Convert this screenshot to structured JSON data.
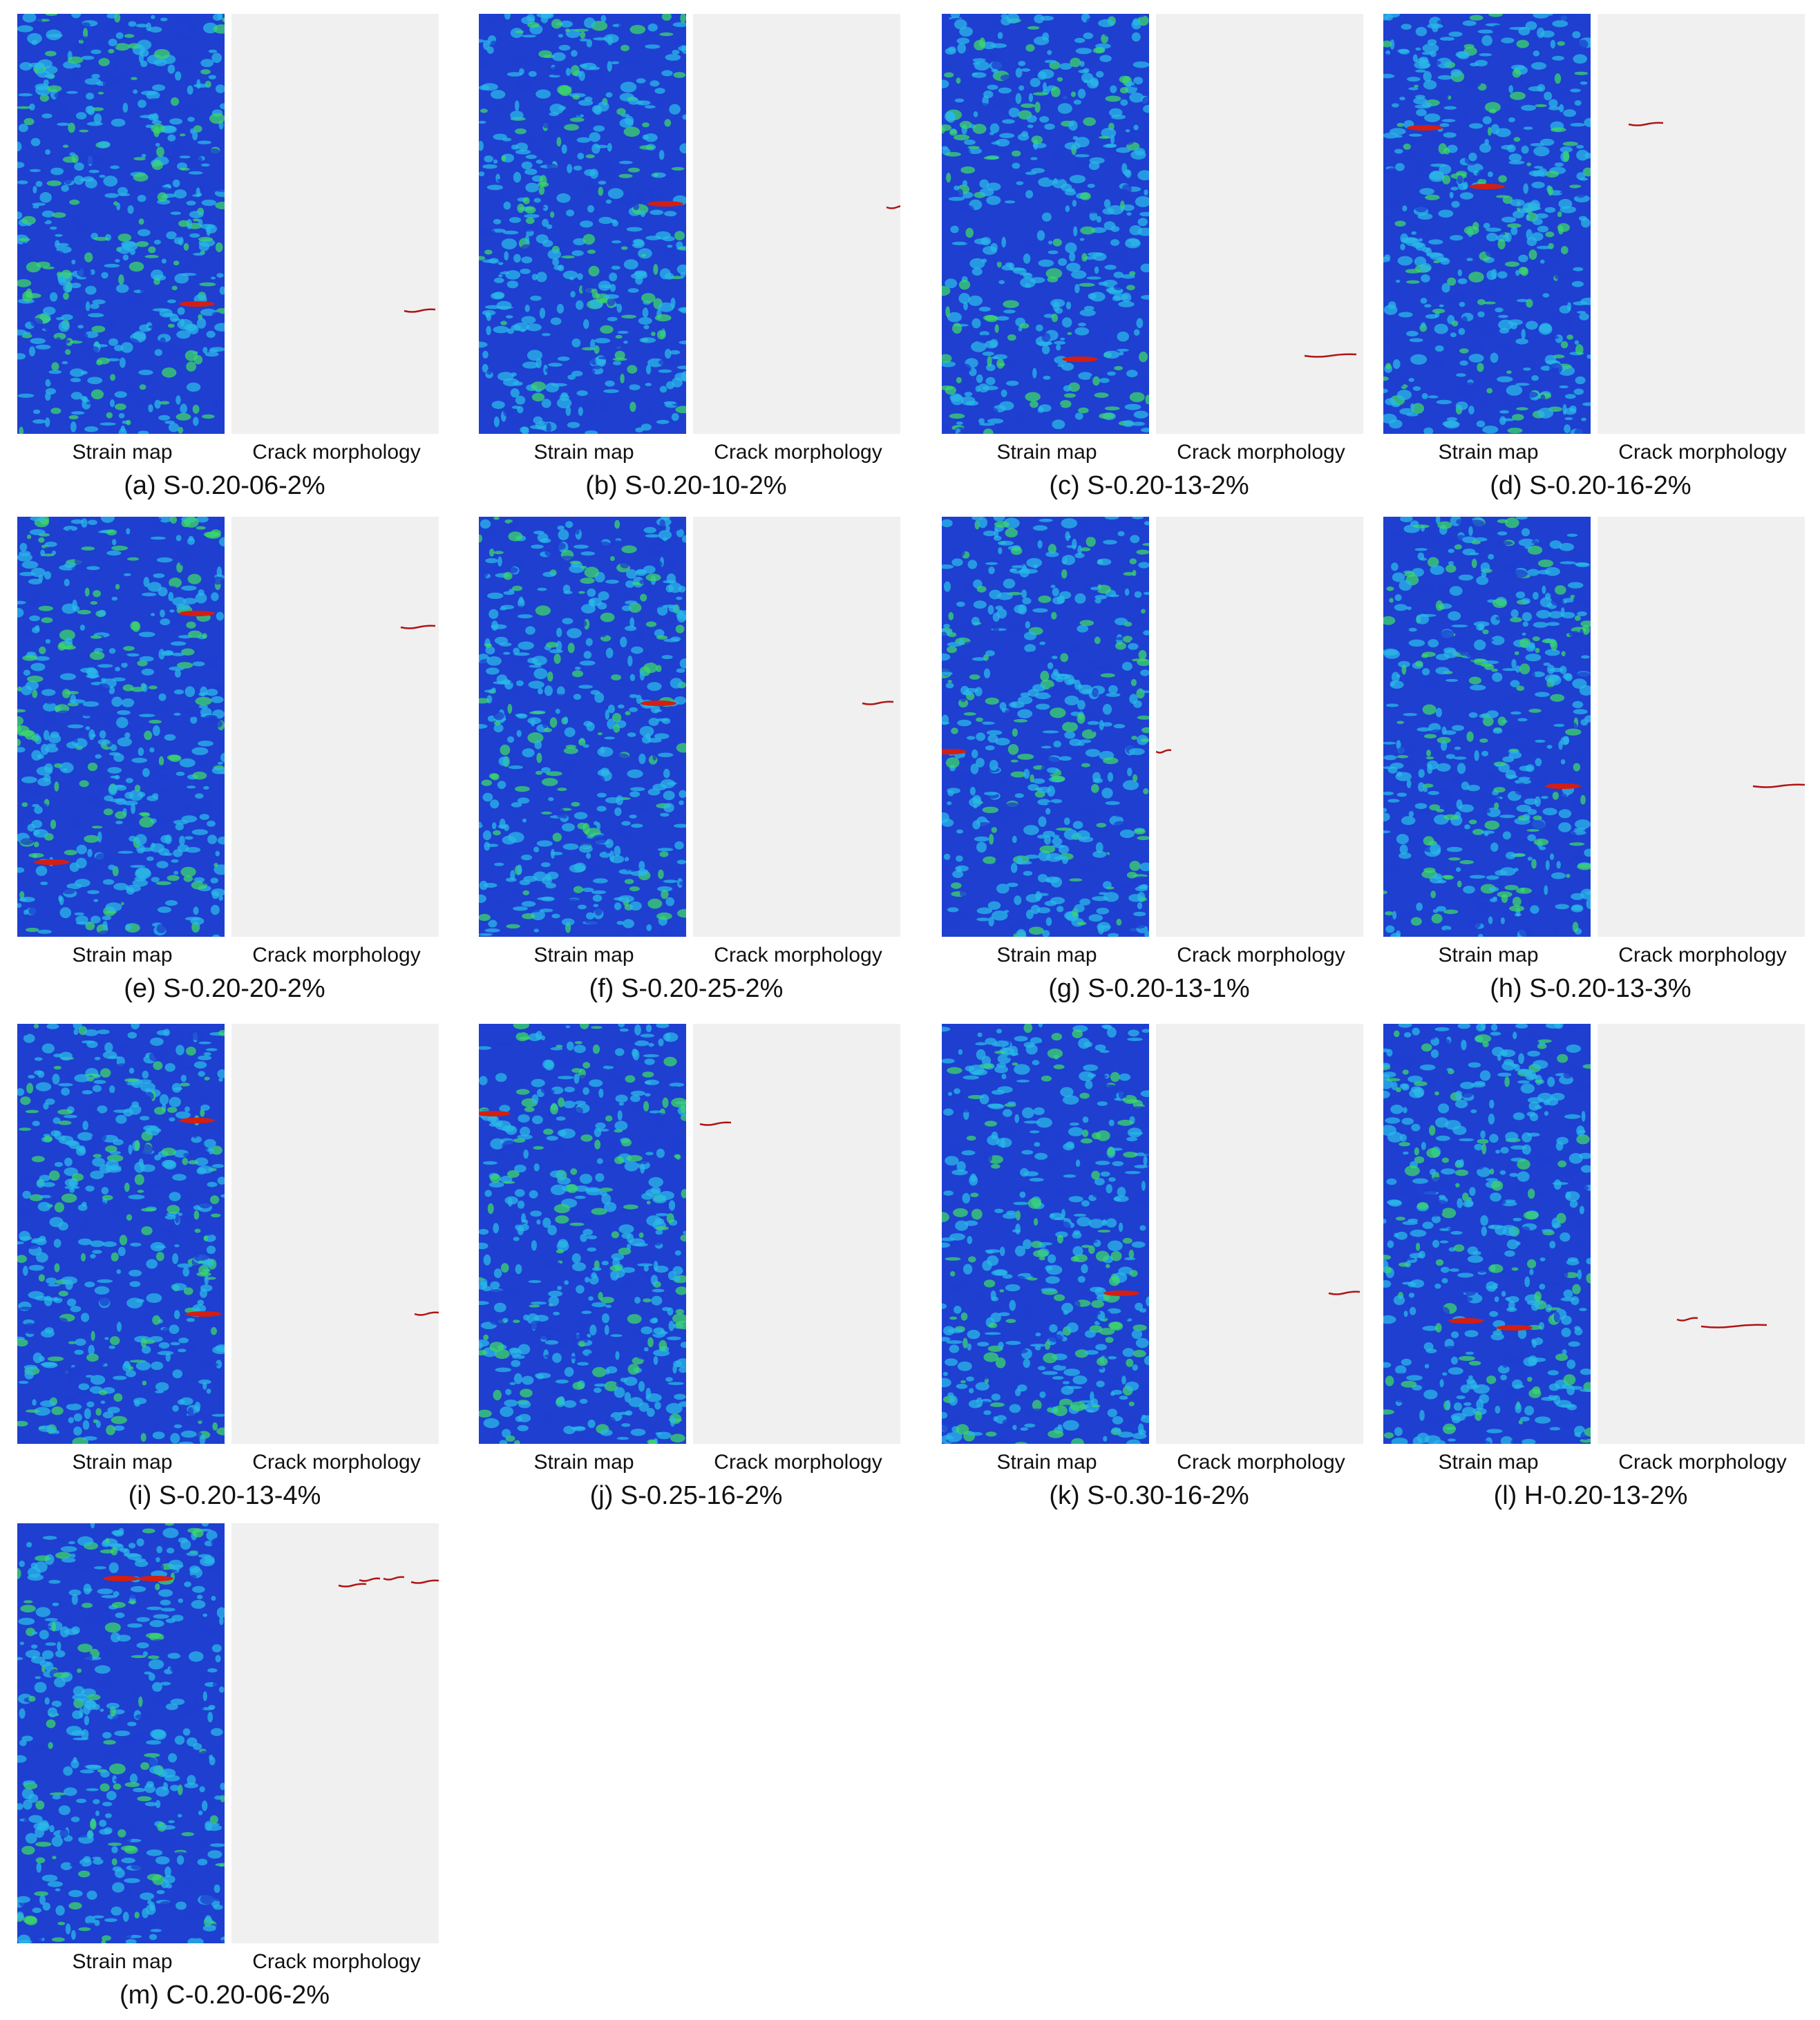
{
  "sublabels": {
    "strain": "Strain map",
    "crack": "Crack morphology"
  },
  "panels": [
    {
      "caption": "(a) S-0.20-06-2%"
    },
    {
      "caption": "(b) S-0.20-10-2%"
    },
    {
      "caption": "(c) S-0.20-13-2%"
    },
    {
      "caption": "(d) S-0.20-16-2%"
    },
    {
      "caption": "(e) S-0.20-20-2%"
    },
    {
      "caption": "(f) S-0.20-25-2%"
    },
    {
      "caption": "(g) S-0.20-13-1%"
    },
    {
      "caption": "(h) S-0.20-13-3%"
    },
    {
      "caption": "(i) S-0.20-13-4%"
    },
    {
      "caption": "(j) S-0.25-16-2%"
    },
    {
      "caption": "(k) S-0.30-16-2%"
    },
    {
      "caption": "(l) H-0.20-13-2%"
    },
    {
      "caption": "(m) C-0.20-06-2%"
    }
  ],
  "colors": {
    "strain_low": "#1e3fd0",
    "strain_mid": "#2ab8e8",
    "strain_high": "#3cd86a",
    "strain_peak": "#d41e12",
    "crack": "#b01414",
    "crack_bg": "#f0f0f0"
  }
}
